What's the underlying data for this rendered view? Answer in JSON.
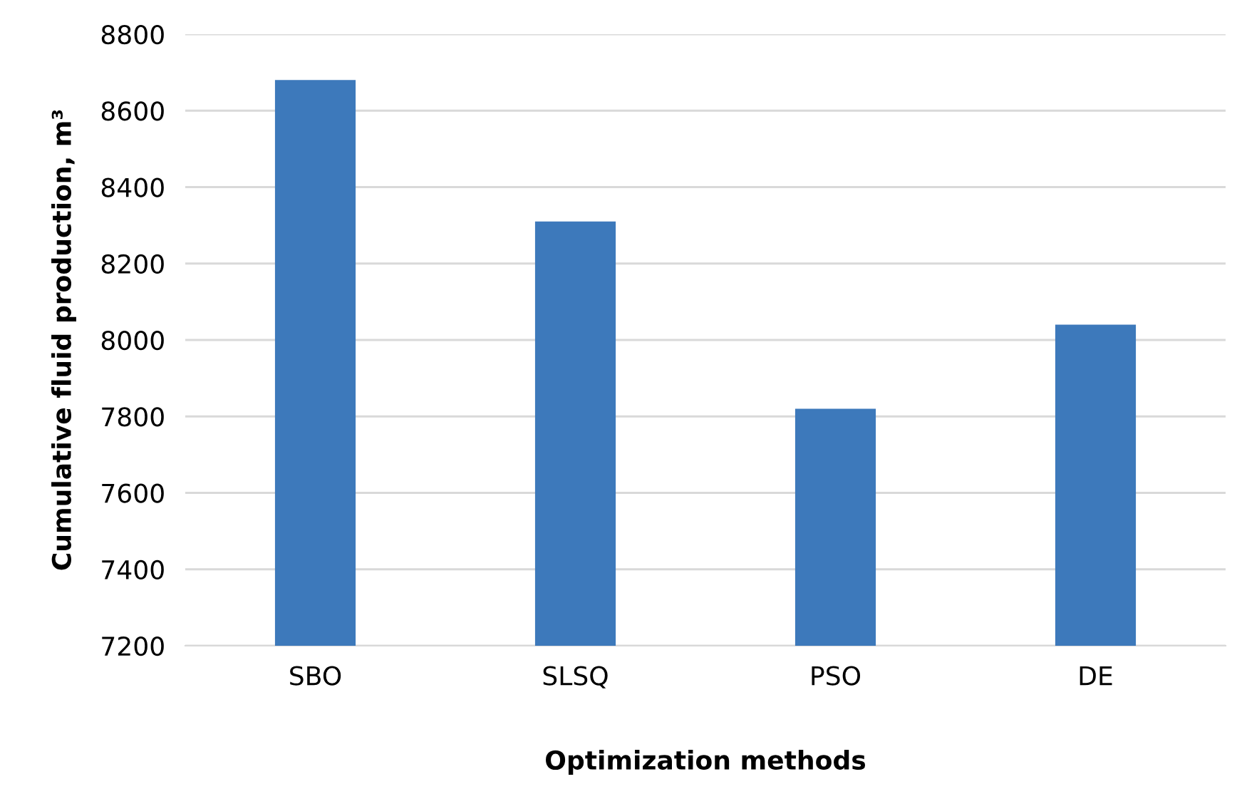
{
  "chart_data": {
    "type": "bar",
    "xlabel": "Optimization methods",
    "ylabel": "Cumulative fluid production, m³",
    "categories": [
      "SBO",
      "SLSQ",
      "PSO",
      "DE"
    ],
    "values": [
      8680,
      8310,
      7820,
      8040
    ],
    "color": "#3d79bb",
    "ylim": [
      7200,
      8800
    ],
    "yticks": [
      7200,
      7400,
      7600,
      7800,
      8000,
      8200,
      8400,
      8600,
      8800
    ],
    "grid": "y"
  }
}
